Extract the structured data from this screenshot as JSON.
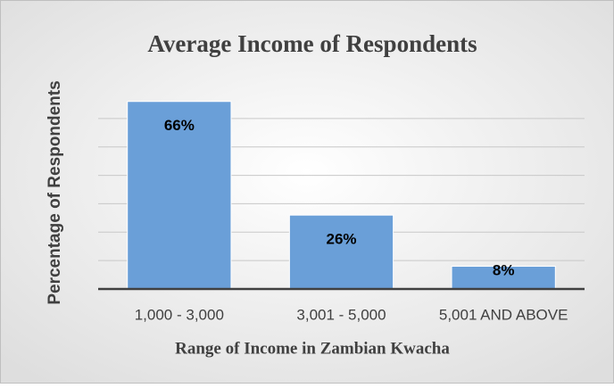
{
  "chart_data": {
    "type": "bar",
    "title": "Average Income of Respondents",
    "x_label": "Range of Income in Zambian Kwacha",
    "y_label": "Percentage of Respondents",
    "categories": [
      "1,000 - 3,000",
      "3,001 - 5,000",
      "5,001 AND ABOVE"
    ],
    "values": [
      66,
      26,
      8
    ],
    "value_labels": [
      "66%",
      "26%",
      "8%"
    ],
    "color": "#6a9fd8",
    "ylim": [
      0,
      70
    ],
    "yticks": [
      0,
      10,
      20,
      30,
      40,
      50,
      60
    ],
    "grid": true
  }
}
